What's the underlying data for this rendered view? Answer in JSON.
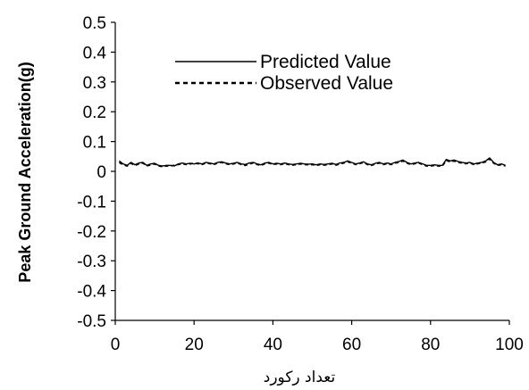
{
  "chart_data": {
    "type": "line",
    "title": "",
    "xlabel": "تعداد رکورد",
    "ylabel": "Peak Ground Acceleration(g)",
    "xlim": [
      0,
      100
    ],
    "ylim": [
      -0.5,
      0.5
    ],
    "x_ticks": [
      "0",
      "20",
      "40",
      "60",
      "80",
      "100"
    ],
    "y_ticks": [
      "0.5",
      "0.4",
      "0.3",
      "0.2",
      "0.1",
      "0",
      "-0.1",
      "-0.2",
      "-0.3",
      "-0.4",
      "-0.5"
    ],
    "grid": false,
    "legend_position": "top-center",
    "series": [
      {
        "name": "Predicted Value",
        "line_style": "solid",
        "color": "#000000",
        "x": [
          1,
          2,
          3,
          4,
          5,
          6,
          7,
          8,
          9,
          10,
          11,
          12,
          13,
          14,
          15,
          16,
          17,
          18,
          19,
          20,
          21,
          22,
          23,
          24,
          25,
          26,
          27,
          28,
          29,
          30,
          31,
          32,
          33,
          34,
          35,
          36,
          37,
          38,
          39,
          40,
          41,
          42,
          43,
          44,
          45,
          46,
          47,
          48,
          49,
          50,
          51,
          52,
          53,
          54,
          55,
          56,
          57,
          58,
          59,
          60,
          61,
          62,
          63,
          64,
          65,
          66,
          67,
          68,
          69,
          70,
          71,
          72,
          73,
          74,
          75,
          76,
          77,
          78,
          79,
          80,
          81,
          82,
          83,
          84,
          85,
          86,
          87,
          88,
          89,
          90,
          91,
          92,
          93,
          94,
          95,
          96,
          97,
          98,
          99
        ],
        "values": [
          0.035,
          0.025,
          0.02,
          0.03,
          0.022,
          0.028,
          0.03,
          0.02,
          0.025,
          0.027,
          0.02,
          0.018,
          0.02,
          0.02,
          0.018,
          0.025,
          0.028,
          0.025,
          0.027,
          0.025,
          0.028,
          0.025,
          0.03,
          0.028,
          0.025,
          0.03,
          0.032,
          0.028,
          0.025,
          0.027,
          0.03,
          0.025,
          0.023,
          0.028,
          0.03,
          0.025,
          0.022,
          0.028,
          0.03,
          0.025,
          0.027,
          0.025,
          0.028,
          0.025,
          0.023,
          0.025,
          0.027,
          0.025,
          0.024,
          0.025,
          0.022,
          0.025,
          0.023,
          0.025,
          0.027,
          0.023,
          0.028,
          0.03,
          0.035,
          0.03,
          0.025,
          0.028,
          0.032,
          0.025,
          0.022,
          0.027,
          0.03,
          0.025,
          0.028,
          0.025,
          0.03,
          0.033,
          0.038,
          0.03,
          0.025,
          0.028,
          0.03,
          0.025,
          0.02,
          0.02,
          0.022,
          0.02,
          0.02,
          0.04,
          0.035,
          0.038,
          0.033,
          0.03,
          0.028,
          0.03,
          0.025,
          0.028,
          0.03,
          0.035,
          0.045,
          0.03,
          0.022,
          0.025,
          0.02
        ]
      },
      {
        "name": "Observed Value",
        "line_style": "dashed",
        "color": "#000000",
        "x": [
          1,
          2,
          3,
          4,
          5,
          6,
          7,
          8,
          9,
          10,
          11,
          12,
          13,
          14,
          15,
          16,
          17,
          18,
          19,
          20,
          21,
          22,
          23,
          24,
          25,
          26,
          27,
          28,
          29,
          30,
          31,
          32,
          33,
          34,
          35,
          36,
          37,
          38,
          39,
          40,
          41,
          42,
          43,
          44,
          45,
          46,
          47,
          48,
          49,
          50,
          51,
          52,
          53,
          54,
          55,
          56,
          57,
          58,
          59,
          60,
          61,
          62,
          63,
          64,
          65,
          66,
          67,
          68,
          69,
          70,
          71,
          72,
          73,
          74,
          75,
          76,
          77,
          78,
          79,
          80,
          81,
          82,
          83,
          84,
          85,
          86,
          87,
          88,
          89,
          90,
          91,
          92,
          93,
          94,
          95,
          96,
          97,
          98,
          99
        ],
        "values": [
          0.03,
          0.022,
          0.018,
          0.027,
          0.02,
          0.025,
          0.028,
          0.018,
          0.022,
          0.025,
          0.018,
          0.016,
          0.018,
          0.018,
          0.02,
          0.023,
          0.026,
          0.023,
          0.025,
          0.027,
          0.026,
          0.023,
          0.028,
          0.026,
          0.023,
          0.028,
          0.03,
          0.026,
          0.023,
          0.025,
          0.028,
          0.023,
          0.02,
          0.025,
          0.028,
          0.023,
          0.02,
          0.026,
          0.028,
          0.023,
          0.025,
          0.023,
          0.026,
          0.023,
          0.021,
          0.023,
          0.025,
          0.023,
          0.022,
          0.023,
          0.02,
          0.023,
          0.021,
          0.023,
          0.025,
          0.021,
          0.025,
          0.028,
          0.032,
          0.028,
          0.023,
          0.026,
          0.03,
          0.023,
          0.02,
          0.025,
          0.028,
          0.023,
          0.026,
          0.023,
          0.028,
          0.03,
          0.035,
          0.028,
          0.023,
          0.026,
          0.028,
          0.023,
          0.018,
          0.018,
          0.02,
          0.018,
          0.018,
          0.037,
          0.032,
          0.035,
          0.03,
          0.028,
          0.026,
          0.028,
          0.023,
          0.026,
          0.028,
          0.032,
          0.042,
          0.028,
          0.02,
          0.023,
          0.018
        ]
      }
    ]
  }
}
